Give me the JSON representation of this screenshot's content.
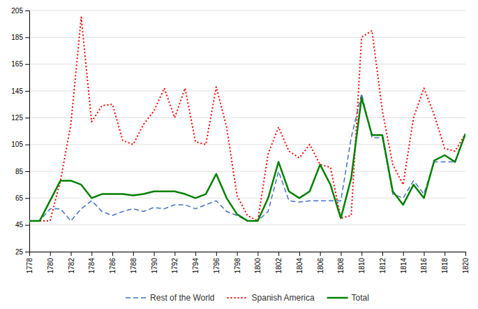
{
  "chart_data": {
    "type": "line",
    "x": [
      1778,
      1779,
      1780,
      1781,
      1782,
      1783,
      1784,
      1785,
      1786,
      1787,
      1788,
      1789,
      1790,
      1791,
      1792,
      1793,
      1794,
      1795,
      1796,
      1797,
      1798,
      1799,
      1800,
      1801,
      1802,
      1803,
      1804,
      1805,
      1806,
      1807,
      1808,
      1809,
      1810,
      1811,
      1812,
      1813,
      1814,
      1815,
      1816,
      1817,
      1818,
      1819,
      1820
    ],
    "series": [
      {
        "name": "Rest of the World",
        "color": "#4472C4",
        "line_style": "dashed",
        "values": [
          48,
          48,
          57,
          57,
          48,
          57,
          63,
          55,
          52,
          55,
          57,
          55,
          58,
          57,
          60,
          60,
          57,
          60,
          63,
          55,
          52,
          48,
          48,
          55,
          85,
          63,
          62,
          63,
          63,
          63,
          63,
          110,
          143,
          110,
          110,
          68,
          65,
          78,
          68,
          92,
          92,
          92,
          113
        ]
      },
      {
        "name": "Spanish America",
        "color": "#FF0000",
        "line_style": "dotted",
        "values": [
          48,
          48,
          48,
          78,
          120,
          200,
          122,
          134,
          135,
          108,
          105,
          120,
          130,
          147,
          125,
          147,
          107,
          105,
          148,
          118,
          67,
          52,
          48,
          98,
          118,
          100,
          95,
          105,
          90,
          88,
          50,
          52,
          185,
          190,
          130,
          90,
          75,
          125,
          147,
          127,
          102,
          100,
          113
        ]
      },
      {
        "name": "Total",
        "color": "#008000",
        "line_style": "solid",
        "values": [
          48,
          48,
          63,
          78,
          78,
          75,
          65,
          68,
          68,
          68,
          67,
          68,
          70,
          70,
          70,
          68,
          65,
          68,
          83,
          65,
          53,
          48,
          48,
          65,
          92,
          70,
          65,
          70,
          90,
          75,
          50,
          80,
          140,
          112,
          112,
          70,
          60,
          75,
          65,
          93,
          97,
          92,
          113
        ]
      }
    ],
    "xlim": [
      1778,
      1820
    ],
    "xticks": [
      1778,
      1780,
      1782,
      1784,
      1786,
      1788,
      1790,
      1792,
      1794,
      1796,
      1798,
      1800,
      1802,
      1804,
      1806,
      1808,
      1810,
      1812,
      1814,
      1816,
      1818,
      1820
    ],
    "ylim": [
      25,
      205
    ],
    "yticks": [
      25,
      45,
      65,
      85,
      105,
      125,
      145,
      165,
      185,
      205
    ],
    "grid": true,
    "legend": "bottom"
  }
}
